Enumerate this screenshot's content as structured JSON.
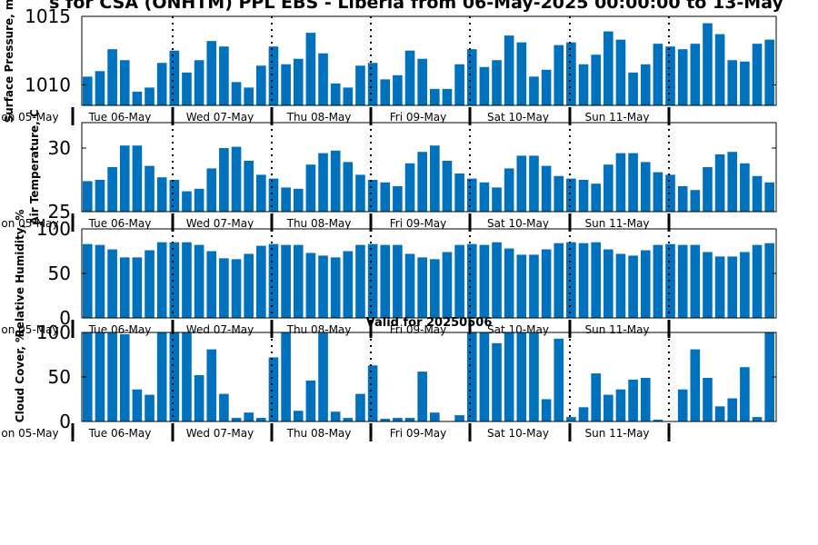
{
  "title": "s for CSA (ONHTM) PPL EBS  - Liberia from 06-May-2025 00:00:00 to 13-May",
  "valid_text": "Valid for 20250506",
  "accent_color": "#0072bd",
  "day_labels": [
    "on 05-May",
    "Tue 06-May",
    "Wed 07-May",
    "Thu 08-May",
    "Fri 09-May",
    "Sat 10-May",
    "Sun 11-May"
  ],
  "chart_data": [
    {
      "type": "bar",
      "ylabel": "Surface Pressure, m",
      "ylim": [
        1008.5,
        1015
      ],
      "yticks": [
        1010,
        1015
      ],
      "grid": false,
      "values": [
        1010.6,
        1011.0,
        1012.6,
        1011.8,
        1009.5,
        1009.8,
        1011.6,
        1012.5,
        1010.9,
        1011.8,
        1013.2,
        1012.8,
        1010.2,
        1009.8,
        1011.4,
        1012.8,
        1011.5,
        1011.9,
        1013.8,
        1012.3,
        1010.1,
        1009.8,
        1011.4,
        1011.6,
        1010.4,
        1010.7,
        1012.5,
        1011.9,
        1009.7,
        1009.7,
        1011.5,
        1012.6,
        1011.3,
        1011.8,
        1013.6,
        1013.1,
        1010.6,
        1011.1,
        1012.9,
        1013.1,
        1011.5,
        1012.2,
        1013.9,
        1013.3,
        1010.9,
        1011.5,
        1013.0,
        1012.8,
        1012.6,
        1013.0,
        1014.5,
        1013.7,
        1011.8,
        1011.7,
        1013.0,
        1013.3
      ]
    },
    {
      "type": "bar",
      "ylabel": "Air Temperature, C",
      "ylim": [
        25,
        32
      ],
      "yticks": [
        25,
        30
      ],
      "grid": false,
      "values": [
        27.4,
        27.5,
        28.5,
        30.2,
        30.2,
        28.6,
        27.7,
        27.5,
        26.6,
        26.8,
        28.4,
        30.0,
        30.1,
        29.0,
        27.9,
        27.6,
        26.9,
        26.8,
        28.7,
        29.6,
        29.8,
        28.9,
        27.9,
        27.5,
        27.3,
        27.0,
        28.8,
        29.7,
        30.2,
        29.0,
        28.0,
        27.6,
        27.3,
        26.9,
        28.4,
        29.4,
        29.4,
        28.6,
        27.8,
        27.6,
        27.5,
        27.2,
        28.7,
        29.6,
        29.6,
        28.9,
        28.1,
        27.9,
        27.0,
        26.7,
        28.5,
        29.5,
        29.7,
        28.8,
        27.8,
        27.3
      ]
    },
    {
      "type": "bar",
      "ylabel": "Relative Humidity, %",
      "ylim": [
        0,
        100
      ],
      "yticks": [
        0,
        50,
        100
      ],
      "grid": false,
      "values": [
        83,
        82,
        77,
        68,
        68,
        76,
        85,
        85,
        85,
        82,
        75,
        67,
        66,
        72,
        81,
        83,
        82,
        82,
        73,
        70,
        68,
        75,
        82,
        83,
        82,
        82,
        72,
        68,
        66,
        74,
        82,
        83,
        82,
        85,
        78,
        71,
        71,
        77,
        84,
        85,
        84,
        85,
        77,
        72,
        70,
        76,
        82,
        83,
        82,
        82,
        74,
        69,
        69,
        74,
        82,
        84
      ]
    },
    {
      "type": "bar",
      "ylabel": "Cloud Cover, %",
      "ylim": [
        0,
        100
      ],
      "yticks": [
        0,
        50,
        100
      ],
      "grid": false,
      "values": [
        100,
        100,
        100,
        98,
        36,
        30,
        100,
        100,
        100,
        52,
        81,
        31,
        4,
        10,
        4,
        72,
        100,
        12,
        46,
        100,
        11,
        4,
        31,
        63,
        3,
        4,
        4,
        56,
        10,
        0,
        7,
        100,
        100,
        88,
        100,
        100,
        100,
        25,
        93,
        5,
        16,
        54,
        30,
        36,
        47,
        49,
        2,
        0,
        36,
        81,
        49,
        17,
        26,
        61,
        5,
        100
      ]
    }
  ]
}
